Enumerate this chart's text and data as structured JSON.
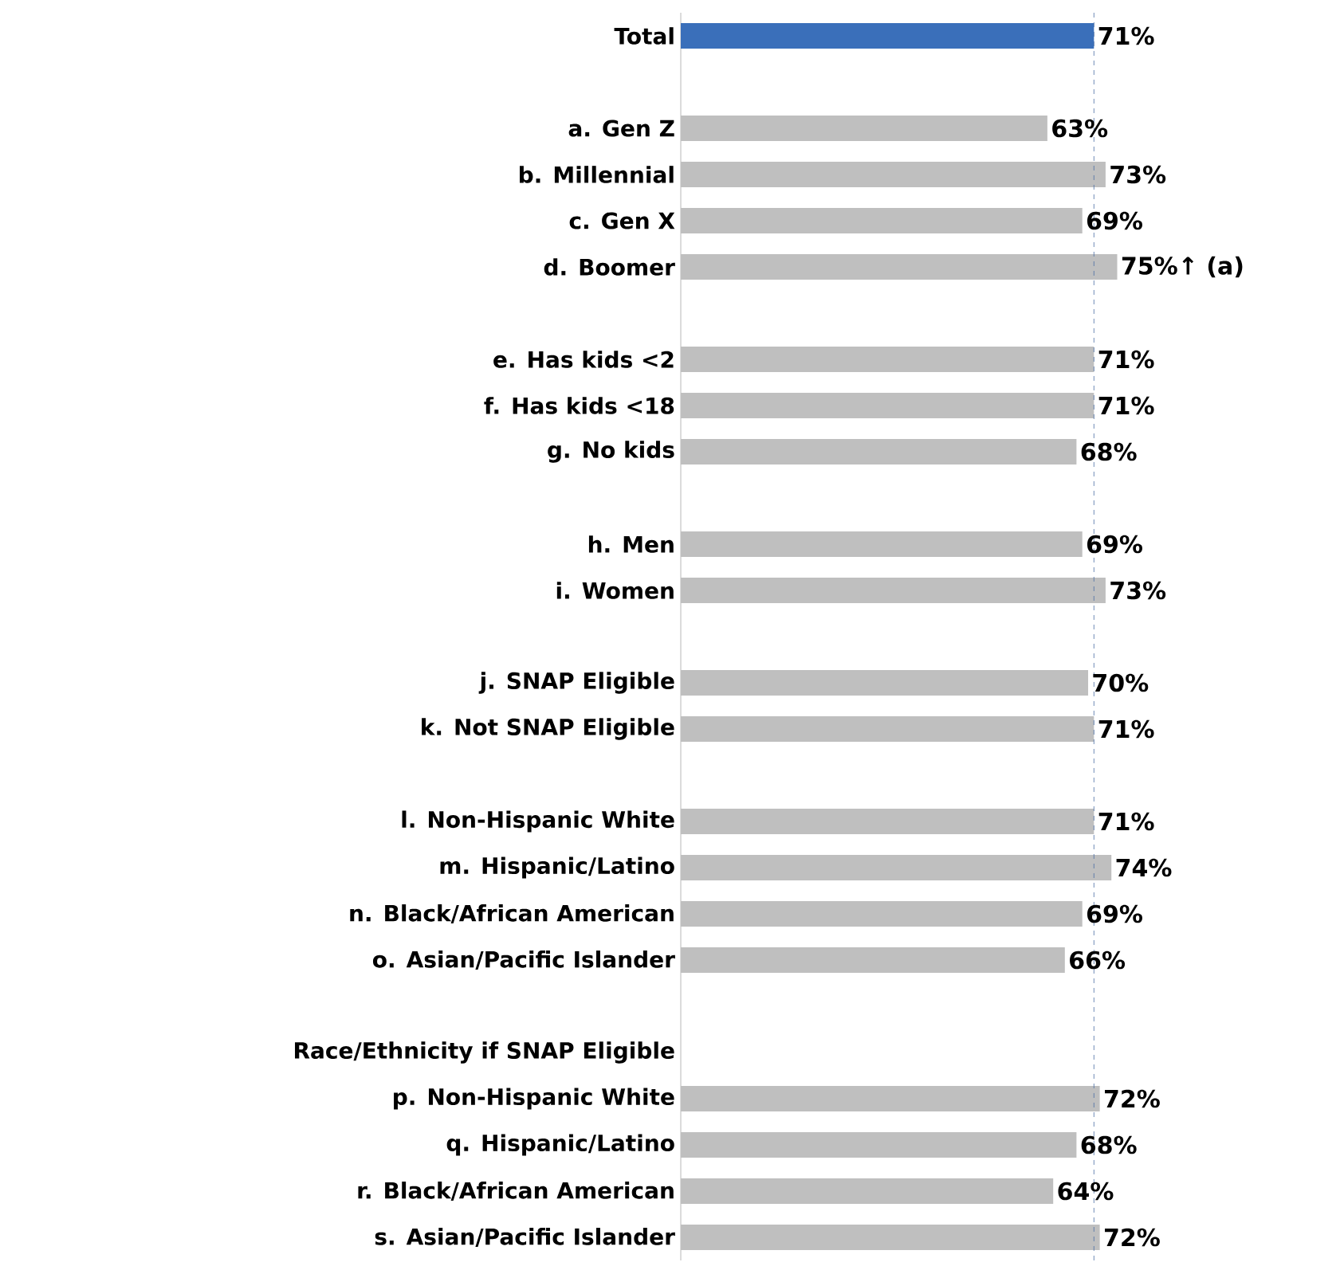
{
  "chart_data": {
    "type": "bar",
    "orientation": "horizontal",
    "categories": [
      "Total",
      null,
      "a. Gen Z",
      "b. Millennial",
      "c. Gen X",
      "d. Boomer",
      null,
      "e. Has kids <2",
      "f. Has kids <18",
      "g. No kids",
      null,
      "h. Men",
      "i. Women",
      null,
      "j. SNAP Eligible",
      "k. Not SNAP Eligible",
      null,
      "l. Non-Hispanic White",
      "m. Hispanic/Latino",
      "n. Black/African American",
      "o. Asian/Pacific Islander",
      null,
      "Race/Ethnicity if SNAP Eligible",
      "p. Non-Hispanic White",
      "q. Hispanic/Latino",
      "r. Black/African American",
      "s. Asian/Pacific Islander"
    ],
    "values": [
      71,
      null,
      63,
      73,
      69,
      75,
      null,
      71,
      71,
      68,
      null,
      69,
      73,
      null,
      70,
      71,
      null,
      71,
      74,
      69,
      66,
      null,
      null,
      72,
      68,
      64,
      72
    ],
    "value_labels": [
      "71%",
      null,
      "63%",
      "73%",
      "69%",
      "75%↑ (a)",
      null,
      "71%",
      "71%",
      "68%",
      null,
      "69%",
      "73%",
      null,
      "70%",
      "71%",
      null,
      "71%",
      "74%",
      "69%",
      "66%",
      null,
      null,
      "72%",
      "68%",
      "64%",
      "72%"
    ],
    "colors": [
      "#3a6fba",
      null,
      "#bfbfbf",
      "#bfbfbf",
      "#bfbfbf",
      "#bfbfbf",
      null,
      "#bfbfbf",
      "#bfbfbf",
      "#bfbfbf",
      null,
      "#bfbfbf",
      "#bfbfbf",
      null,
      "#bfbfbf",
      "#bfbfbf",
      null,
      "#bfbfbf",
      "#bfbfbf",
      "#bfbfbf",
      "#bfbfbf",
      null,
      null,
      "#bfbfbf",
      "#bfbfbf",
      "#bfbfbf",
      "#bfbfbf"
    ],
    "ref_lines": [
      {
        "axis": "x",
        "value": 71,
        "color": "#4a6fa5",
        "line_style": "dashed"
      }
    ]
  }
}
